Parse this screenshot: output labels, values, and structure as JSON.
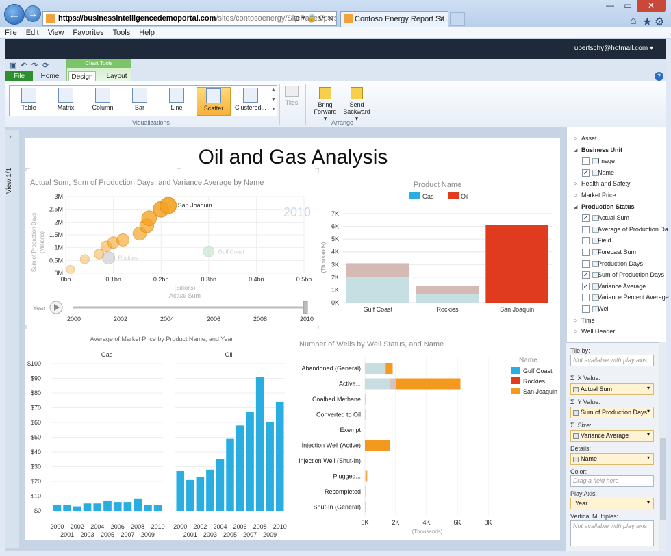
{
  "browser": {
    "url_host": "https://businessintelligencedemoportal.com",
    "url_path": "/sites/contosoenergy/SitePages/pvrsample.asp:",
    "url_controls": "ρ ▾ 🔒 ⟳ ✕",
    "tab_title": "Contoso Energy Report Sa...",
    "tab_close": "✕",
    "menu": [
      "File",
      "Edit",
      "View",
      "Favorites",
      "Tools",
      "Help"
    ],
    "user": "ubertschy@hotmail.com ▾",
    "back": "←",
    "forward": "→"
  },
  "ribbon": {
    "context_label": "Chart Tools",
    "tabs": {
      "file": "File",
      "home": "Home",
      "design": "Design",
      "layout": "Layout"
    },
    "help": "?",
    "viz_buttons": [
      "Table",
      "Matrix",
      "Column",
      "Bar",
      "Line",
      "Scatter",
      "Clustered..."
    ],
    "selected_viz": "Scatter",
    "tiles": "Tiles",
    "bring_forward": "Bring\nForward ▾",
    "send_backward": "Send\nBackward ▾",
    "group_visualizations": "Visualizations",
    "group_arrange": "Arrange"
  },
  "view": {
    "label": "View 1/1",
    "arrow": "›"
  },
  "report": {
    "title": "Oil and Gas Analysis"
  },
  "scatter": {
    "title": "Actual Sum, Sum of Production Days, and Variance Average by Name",
    "year_watermark": "2010",
    "xlabel": "Actual Sum",
    "xunit": "(Billions)",
    "ylabel": "Sum of Production Days",
    "yunit": "(Millions)",
    "x_ticks": [
      "0bn",
      "0.1bn",
      "0.2bn",
      "0.3bn",
      "0.4bn",
      "0.5bn"
    ],
    "y_ticks": [
      "0M",
      "0.5M",
      "1M",
      "1.5M",
      "2M",
      "2.5M",
      "3M"
    ],
    "labels": {
      "sj": "San Joaquin",
      "rk": "Rockies",
      "gc": "Gulf Coast"
    },
    "play_label": "Year",
    "play_ticks": [
      "2000",
      "2002",
      "2004",
      "2006",
      "2008",
      "2010"
    ]
  },
  "chart_data": [
    {
      "type": "scatter",
      "title": "Actual Sum, Sum of Production Days, and Variance Average by Name",
      "xlabel": "Actual Sum",
      "ylabel": "Sum of Production Days",
      "xlim": [
        0,
        0.5
      ],
      "ylim": [
        0,
        3
      ],
      "series": [
        {
          "name": "San Joaquin",
          "x": [
            0.01,
            0.04,
            0.07,
            0.085,
            0.1,
            0.12,
            0.155,
            0.17,
            0.175,
            0.2,
            0.215
          ],
          "y": [
            0.15,
            0.55,
            0.75,
            1.05,
            1.2,
            1.3,
            1.55,
            1.85,
            2.15,
            2.5,
            2.65
          ]
        },
        {
          "name": "Rockies",
          "x": [
            0.09
          ],
          "y": [
            0.6
          ]
        },
        {
          "name": "Gulf Coast",
          "x": [
            0.3
          ],
          "y": [
            0.85
          ]
        }
      ]
    },
    {
      "type": "bar",
      "title": "Product Name",
      "ylabel": "(Thousands)",
      "categories": [
        "Gulf Coast",
        "Rockies",
        "San Joaquin"
      ],
      "ylim": [
        0,
        7
      ],
      "series": [
        {
          "name": "Gas",
          "color": "#2aaee2",
          "values": [
            2.0,
            0.7,
            0
          ]
        },
        {
          "name": "Oil",
          "color": "#e03b1f",
          "values": [
            1.1,
            0.6,
            6.1
          ]
        }
      ],
      "y_ticks": [
        "0K",
        "1K",
        "2K",
        "3K",
        "4K",
        "5K",
        "6K",
        "7K"
      ]
    },
    {
      "type": "bar",
      "title": "Average of Market Price by Product Name, and Year",
      "panels": [
        "Gas",
        "Oil"
      ],
      "categories": [
        "2000",
        "2001",
        "2002",
        "2003",
        "2004",
        "2005",
        "2006",
        "2007",
        "2008",
        "2009",
        "2010"
      ],
      "series": [
        {
          "name": "Gas",
          "values": [
            4,
            4,
            3,
            5,
            5,
            7,
            6,
            6,
            8,
            4,
            4
          ]
        },
        {
          "name": "Oil",
          "values": [
            27,
            21,
            23,
            28,
            35,
            49,
            58,
            67,
            91,
            60,
            74
          ]
        }
      ],
      "ylim": [
        0,
        100
      ],
      "y_ticks": [
        "$0",
        "$10",
        "$20",
        "$30",
        "$40",
        "$50",
        "$60",
        "$70",
        "$80",
        "$90",
        "$100"
      ],
      "x_ticks_top": [
        "2000",
        "2002",
        "2004",
        "2006",
        "2008",
        "2010"
      ],
      "x_ticks_bottom": [
        "2001",
        "2003",
        "2005",
        "2007",
        "2009"
      ]
    },
    {
      "type": "bar",
      "title": "Number of Wells by Well Status, and Name",
      "xlabel": "(Thousands)",
      "categories": [
        "Abandoned (General)",
        "Active...",
        "Coalbed Methane",
        "Converted to Oil",
        "Exempt",
        "Injection Well (Active)",
        "Injection Well (Shut-In)",
        "Plugged...",
        "Recompleted",
        "Shut-In (General)"
      ],
      "xlim": [
        0,
        8
      ],
      "x_ticks": [
        "0K",
        "2K",
        "4K",
        "6K",
        "8K"
      ],
      "legend_title": "Name",
      "series": [
        {
          "name": "Gulf Coast",
          "color": "#2aaee2",
          "values": [
            1.3,
            1.6,
            0.05,
            0.04,
            0,
            0,
            0,
            0.05,
            0.04,
            0.08
          ]
        },
        {
          "name": "Rockies",
          "color": "#e03b1f",
          "values": [
            0.05,
            0.4,
            0,
            0,
            0,
            0,
            0,
            0.05,
            0,
            0
          ]
        },
        {
          "name": "San Joaquin",
          "color": "#f39a1e",
          "values": [
            0.45,
            4.2,
            0,
            0,
            0,
            1.6,
            0,
            0.05,
            0,
            0
          ]
        }
      ]
    }
  ],
  "fields": {
    "items": [
      {
        "label": "Asset",
        "type": "collapsed"
      },
      {
        "label": "Business Unit",
        "type": "expanded"
      },
      {
        "label": "Image",
        "type": "field",
        "checked": false
      },
      {
        "label": "Name",
        "type": "field",
        "checked": true
      },
      {
        "label": "Health and Safety",
        "type": "collapsed"
      },
      {
        "label": "Market Price",
        "type": "collapsed"
      },
      {
        "label": "Production Status",
        "type": "expanded"
      },
      {
        "label": "Actual Sum",
        "type": "field",
        "checked": true
      },
      {
        "label": "Average of Production Da",
        "type": "field",
        "checked": false
      },
      {
        "label": "Field",
        "type": "field",
        "checked": false
      },
      {
        "label": "Forecast Sum",
        "type": "field",
        "checked": false
      },
      {
        "label": "Production Days",
        "type": "field",
        "checked": false
      },
      {
        "label": "Sum of Production Days",
        "type": "field",
        "checked": true
      },
      {
        "label": "Variance Average",
        "type": "field",
        "checked": true
      },
      {
        "label": "Variance Percent Average",
        "type": "field",
        "checked": false
      },
      {
        "label": "Well",
        "type": "field",
        "checked": false
      },
      {
        "label": "Time",
        "type": "collapsed"
      },
      {
        "label": "Well Header",
        "type": "collapsed"
      }
    ]
  },
  "wells": {
    "tile_by": "Tile by:",
    "tile_placeholder": "Not available with play axis",
    "x_value": "X Value:",
    "x_value_field": "Actual Sum",
    "y_value": "Y Value:",
    "y_value_field": "Sum of Production Days",
    "size": "Size:",
    "size_field": "Variance Average",
    "details": "Details:",
    "details_field": "Name",
    "color": "Color:",
    "color_placeholder": "Drag a field here",
    "play_axis": "Play Axis:",
    "play_axis_field": "Year",
    "vertical": "Vertical Multiples:",
    "vertical_placeholder": "Not available with play axis",
    "sigma": "Σ",
    "dropdown": "▾"
  }
}
